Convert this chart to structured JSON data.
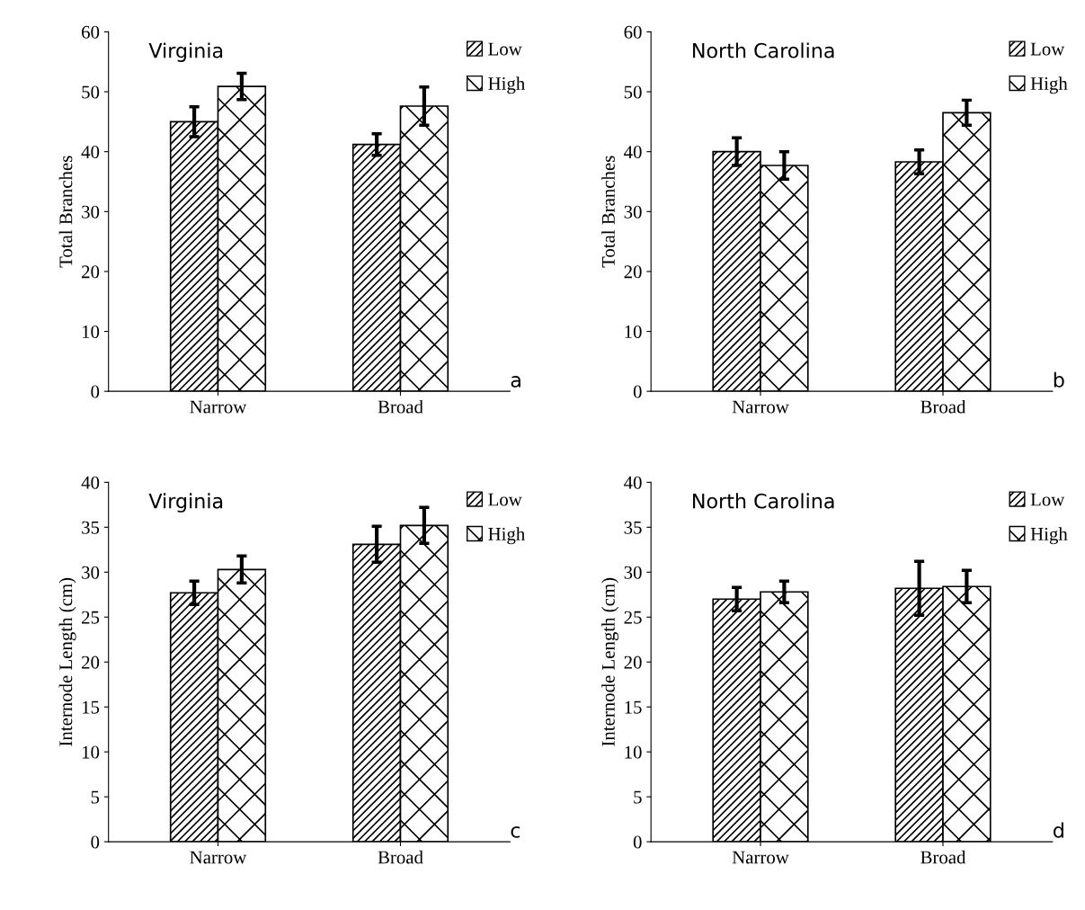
{
  "chart_data": [
    {
      "type": "bar",
      "title": "Virginia",
      "ylabel": "Total Branches",
      "categories": [
        "Narrow",
        "Broad"
      ],
      "series": [
        {
          "name": "Low",
          "color": "#000000",
          "values": [
            45.0,
            41.2
          ],
          "errors": [
            2.5,
            1.8
          ]
        },
        {
          "name": "High",
          "color": "#000000",
          "values": [
            50.9,
            47.6
          ],
          "errors": [
            2.2,
            3.2
          ]
        }
      ],
      "ylim": [
        0,
        60
      ],
      "yticks": [
        0,
        10,
        20,
        30,
        40,
        50,
        60
      ],
      "grid": false,
      "legend": "top right",
      "annotations": [
        "a"
      ]
    },
    {
      "type": "bar",
      "title": "North Carolina",
      "ylabel": "Total Branches",
      "categories": [
        "Narrow",
        "Broad"
      ],
      "series": [
        {
          "name": "Low",
          "color": "#000000",
          "values": [
            40.0,
            38.3
          ],
          "errors": [
            2.3,
            2.0
          ]
        },
        {
          "name": "High",
          "color": "#000000",
          "values": [
            37.7,
            46.5
          ],
          "errors": [
            2.3,
            2.1
          ]
        }
      ],
      "ylim": [
        0,
        60
      ],
      "yticks": [
        0,
        10,
        20,
        30,
        40,
        50,
        60
      ],
      "grid": false,
      "legend": "top right",
      "annotations": [
        "b"
      ]
    },
    {
      "type": "bar",
      "title": "Virginia",
      "ylabel": "Internode Length (cm)",
      "categories": [
        "Narrow",
        "Broad"
      ],
      "series": [
        {
          "name": "Low",
          "color": "#000000",
          "values": [
            27.7,
            33.1
          ],
          "errors": [
            1.3,
            2.0
          ]
        },
        {
          "name": "High",
          "color": "#000000",
          "values": [
            30.3,
            35.2
          ],
          "errors": [
            1.5,
            2.0
          ]
        }
      ],
      "ylim": [
        0,
        40
      ],
      "yticks": [
        0,
        5,
        10,
        15,
        20,
        25,
        30,
        35,
        40
      ],
      "grid": false,
      "legend": "top right",
      "annotations": [
        "c"
      ]
    },
    {
      "type": "bar",
      "title": "North Carolina",
      "ylabel": "Internode Length (cm)",
      "categories": [
        "Narrow",
        "Broad"
      ],
      "series": [
        {
          "name": "Low",
          "color": "#000000",
          "values": [
            27.0,
            28.2
          ],
          "errors": [
            1.3,
            3.0
          ]
        },
        {
          "name": "High",
          "color": "#000000",
          "values": [
            27.8,
            28.4
          ],
          "errors": [
            1.2,
            1.8
          ]
        }
      ],
      "ylim": [
        0,
        40
      ],
      "yticks": [
        0,
        5,
        10,
        15,
        20,
        25,
        30,
        35,
        40
      ],
      "grid": false,
      "legend": "top right",
      "annotations": [
        "d"
      ]
    }
  ]
}
